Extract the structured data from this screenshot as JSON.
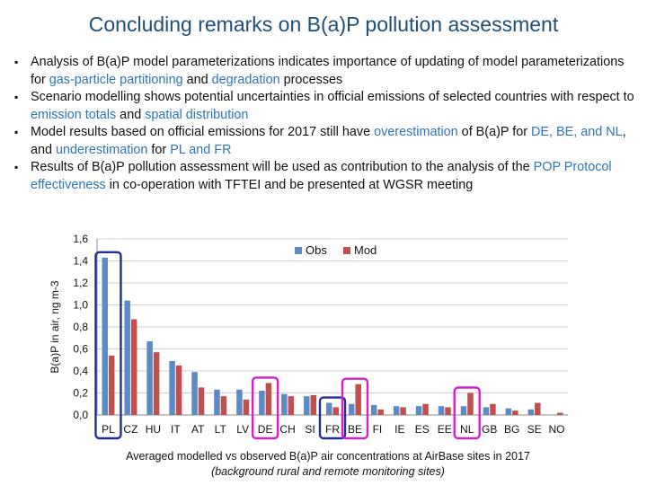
{
  "slide": {
    "title": "Concluding remarks on B(a)P pollution assessment",
    "bullet_marker": "▪",
    "bullets": [
      [
        {
          "t": "Analysis of B(a)P model parameterizations indicates importance of updating of model parameterizations for "
        },
        {
          "t": "gas-particle partitioning",
          "hl": true
        },
        {
          "t": " and "
        },
        {
          "t": "degradation",
          "hl": true
        },
        {
          "t": " processes"
        }
      ],
      [
        {
          "t": "Scenario modelling shows potential uncertainties in official emissions of selected countries with respect to "
        },
        {
          "t": "emission totals",
          "hl": true
        },
        {
          "t": " and "
        },
        {
          "t": "spatial distribution",
          "hl": true
        }
      ],
      [
        {
          "t": "Model results based on official emissions for 2017 still have "
        },
        {
          "t": "overestimation",
          "hl": true
        },
        {
          "t": " of B(a)P for "
        },
        {
          "t": "DE, BE, and NL",
          "hl": true
        },
        {
          "t": ", and "
        },
        {
          "t": "underestimation",
          "hl": true
        },
        {
          "t": " for "
        },
        {
          "t": "PL and FR",
          "hl": true
        }
      ],
      [
        {
          "t": "Results of B(a)P pollution assessment will be used as contribution to the analysis of the "
        },
        {
          "t": "POP Protocol effectiveness",
          "hl": true
        },
        {
          "t": " in co-operation with TFTEI and be presented at WGSR meeting"
        }
      ]
    ],
    "caption_line1": "Averaged modelled vs observed B(a)P air concentrations at AirBase sites in 2017",
    "caption_line2": "(background rural and remote monitoring sites)"
  },
  "chart_data": {
    "type": "bar",
    "title": "",
    "xlabel": "",
    "ylabel": "B(a)P in air, ng m-3",
    "ylim": [
      0,
      1.6
    ],
    "yticks": [
      0,
      0.2,
      0.4,
      0.6,
      0.8,
      1.0,
      1.2,
      1.4,
      1.6
    ],
    "ytick_labels": [
      "0,0",
      "0,2",
      "0,4",
      "0,6",
      "0,8",
      "1,0",
      "1,2",
      "1,4",
      "1,6"
    ],
    "grid": true,
    "legend_position": "top-right",
    "categories": [
      "PL",
      "CZ",
      "HU",
      "IT",
      "AT",
      "LT",
      "LV",
      "DE",
      "CH",
      "SI",
      "FR",
      "BE",
      "FI",
      "IE",
      "ES",
      "EE",
      "NL",
      "GB",
      "BG",
      "SE",
      "NO"
    ],
    "series": [
      {
        "name": "Obs",
        "color": "#5b8ac6",
        "values": [
          1.43,
          1.04,
          0.67,
          0.49,
          0.39,
          0.23,
          0.23,
          0.22,
          0.19,
          0.17,
          0.11,
          0.1,
          0.09,
          0.08,
          0.08,
          0.08,
          0.08,
          0.07,
          0.06,
          0.05,
          0.0
        ]
      },
      {
        "name": "Mod",
        "color": "#c0504d",
        "values": [
          0.54,
          0.87,
          0.57,
          0.45,
          0.25,
          0.17,
          0.14,
          0.29,
          0.17,
          0.18,
          0.07,
          0.28,
          0.05,
          0.07,
          0.1,
          0.07,
          0.2,
          0.1,
          0.04,
          0.11,
          0.02
        ]
      }
    ],
    "highlight_groups": [
      {
        "categories": [
          "PL"
        ],
        "color": "#1f2f9a"
      },
      {
        "categories": [
          "DE"
        ],
        "color": "#d020d0"
      },
      {
        "categories": [
          "FR"
        ],
        "color": "#1f2f9a"
      },
      {
        "categories": [
          "BE"
        ],
        "color": "#d020d0"
      },
      {
        "categories": [
          "NL"
        ],
        "color": "#d020d0"
      }
    ]
  }
}
